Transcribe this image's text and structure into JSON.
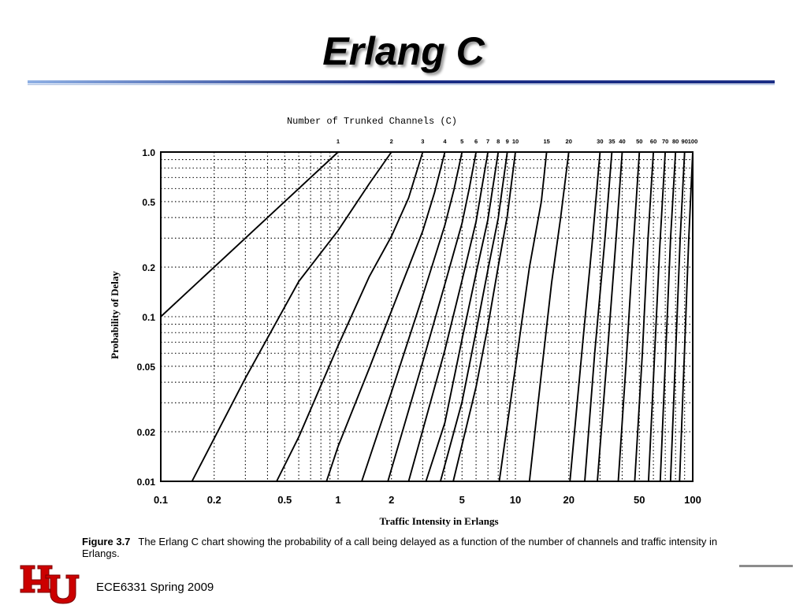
{
  "slide": {
    "title": "Erlang C",
    "footer": "ECE6331 Spring 2009",
    "logo_text": "UH",
    "colors": {
      "rule_dark": "#1c2f86",
      "rule_light": "#8fb0e4",
      "logo_red": "#cc0000"
    }
  },
  "caption": {
    "label": "Figure 3.7",
    "text": "The Erlang C chart showing the probability of a call being delayed as a function of the number of channels and traffic intensity in Erlangs."
  },
  "chart_data": {
    "type": "line",
    "title": "Number of Trunked Channels  (C)",
    "xlabel": "Traffic Intensity in Erlangs",
    "ylabel": "Probability of Delay",
    "x_scale": "log",
    "y_scale": "log",
    "xlim": [
      0.1,
      100
    ],
    "ylim": [
      0.01,
      1.0
    ],
    "x_ticks": [
      {
        "value": 0.1,
        "label": "0.1"
      },
      {
        "value": 0.2,
        "label": "0.2"
      },
      {
        "value": 0.5,
        "label": "0.5"
      },
      {
        "value": 1,
        "label": "1"
      },
      {
        "value": 2,
        "label": "2"
      },
      {
        "value": 5,
        "label": "5"
      },
      {
        "value": 10,
        "label": "10"
      },
      {
        "value": 20,
        "label": "20"
      },
      {
        "value": 50,
        "label": "50"
      },
      {
        "value": 100,
        "label": "100"
      }
    ],
    "y_ticks": [
      {
        "value": 1.0,
        "label": "1.0"
      },
      {
        "value": 0.5,
        "label": "0.5"
      },
      {
        "value": 0.2,
        "label": "0.2"
      },
      {
        "value": 0.1,
        "label": "0.1"
      },
      {
        "value": 0.05,
        "label": "0.05"
      },
      {
        "value": 0.02,
        "label": "0.02"
      },
      {
        "value": 0.01,
        "label": "0.01"
      }
    ],
    "grid": "dotted",
    "series": [
      {
        "name": "1",
        "points": [
          [
            0.1,
            0.1
          ],
          [
            1.0,
            1.0
          ]
        ]
      },
      {
        "name": "2",
        "points": [
          [
            0.15,
            0.01
          ],
          [
            0.3,
            0.0424
          ],
          [
            0.6,
            0.1636
          ],
          [
            1.0,
            0.3333
          ],
          [
            1.5,
            0.6429
          ],
          [
            2.0,
            1.0
          ]
        ]
      },
      {
        "name": "3",
        "points": [
          [
            0.45,
            0.01
          ],
          [
            0.6,
            0.0186
          ],
          [
            1.0,
            0.0667
          ],
          [
            1.5,
            0.1753
          ],
          [
            2.0,
            0.3077
          ],
          [
            2.5,
            0.5266
          ],
          [
            3.0,
            1.0
          ]
        ]
      },
      {
        "name": "4",
        "points": [
          [
            0.86,
            0.01
          ],
          [
            1.0,
            0.0163
          ],
          [
            1.5,
            0.0486
          ],
          [
            2.0,
            0.1081
          ],
          [
            3.0,
            0.3312
          ],
          [
            3.5,
            0.5678
          ],
          [
            4.0,
            1.0
          ]
        ]
      },
      {
        "name": "5",
        "points": [
          [
            1.36,
            0.01
          ],
          [
            2.0,
            0.0348
          ],
          [
            3.0,
            0.1339
          ],
          [
            4.0,
            0.3599
          ],
          [
            4.5,
            0.5903
          ],
          [
            5.0,
            1.0
          ]
        ]
      },
      {
        "name": "6",
        "points": [
          [
            1.91,
            0.01
          ],
          [
            3.0,
            0.0531
          ],
          [
            4.0,
            0.1577
          ],
          [
            5.0,
            0.3697
          ],
          [
            5.5,
            0.6057
          ],
          [
            6.0,
            1.0
          ]
        ]
      },
      {
        "name": "7",
        "points": [
          [
            2.5,
            0.01
          ],
          [
            4.0,
            0.0627
          ],
          [
            5.0,
            0.1664
          ],
          [
            6.0,
            0.3785
          ],
          [
            7.0,
            1.0
          ]
        ]
      },
      {
        "name": "8",
        "points": [
          [
            3.13,
            0.01
          ],
          [
            4.0,
            0.0227
          ],
          [
            5.0,
            0.0731
          ],
          [
            6.0,
            0.1832
          ],
          [
            7.0,
            0.389
          ],
          [
            8.0,
            1.0
          ]
        ]
      },
      {
        "name": "9",
        "points": [
          [
            3.78,
            0.01
          ],
          [
            5.0,
            0.0304
          ],
          [
            6.0,
            0.0815
          ],
          [
            7.0,
            0.1926
          ],
          [
            8.0,
            0.397
          ],
          [
            9.0,
            1.0
          ]
        ]
      },
      {
        "name": "10",
        "points": [
          [
            4.46,
            0.01
          ],
          [
            6.0,
            0.0375
          ],
          [
            7.0,
            0.0878
          ],
          [
            8.0,
            0.2019
          ],
          [
            9.0,
            0.4081
          ],
          [
            10.0,
            1.0
          ]
        ]
      },
      {
        "name": "15",
        "points": [
          [
            8.11,
            0.01
          ],
          [
            10.0,
            0.0492
          ],
          [
            12.0,
            0.2
          ],
          [
            14.0,
            0.5
          ],
          [
            15.0,
            1.0
          ]
        ]
      },
      {
        "name": "20",
        "points": [
          [
            12.0,
            0.01
          ],
          [
            14.0,
            0.045
          ],
          [
            16.0,
            0.16
          ],
          [
            18.0,
            0.4
          ],
          [
            20.0,
            1.0
          ]
        ]
      },
      {
        "name": "30",
        "points": [
          [
            20.3,
            0.01
          ],
          [
            24.0,
            0.07
          ],
          [
            27.0,
            0.27
          ],
          [
            30.0,
            1.0
          ]
        ]
      },
      {
        "name": "35",
        "points": [
          [
            24.6,
            0.01
          ],
          [
            28.0,
            0.06
          ],
          [
            32.0,
            0.3
          ],
          [
            35.0,
            1.0
          ]
        ]
      },
      {
        "name": "40",
        "points": [
          [
            29.0,
            0.01
          ],
          [
            33.0,
            0.06
          ],
          [
            37.0,
            0.3
          ],
          [
            40.0,
            1.0
          ]
        ]
      },
      {
        "name": "50",
        "points": [
          [
            38.0,
            0.01
          ],
          [
            42.0,
            0.05
          ],
          [
            46.0,
            0.25
          ],
          [
            50.0,
            1.0
          ]
        ]
      },
      {
        "name": "60",
        "points": [
          [
            47.1,
            0.01
          ],
          [
            52.0,
            0.06
          ],
          [
            56.0,
            0.3
          ],
          [
            60.0,
            1.0
          ]
        ]
      },
      {
        "name": "70",
        "points": [
          [
            56.3,
            0.01
          ],
          [
            65.0,
            0.25
          ],
          [
            70.0,
            1.0
          ]
        ]
      },
      {
        "name": "80",
        "points": [
          [
            65.6,
            0.01
          ],
          [
            75.0,
            0.3
          ],
          [
            80.0,
            1.0
          ]
        ]
      },
      {
        "name": "90",
        "points": [
          [
            74.9,
            0.01
          ],
          [
            85.0,
            0.3
          ],
          [
            90.0,
            1.0
          ]
        ]
      },
      {
        "name": "100",
        "points": [
          [
            84.3,
            0.01
          ],
          [
            95.0,
            0.3
          ],
          [
            100.0,
            1.0
          ]
        ]
      }
    ]
  }
}
